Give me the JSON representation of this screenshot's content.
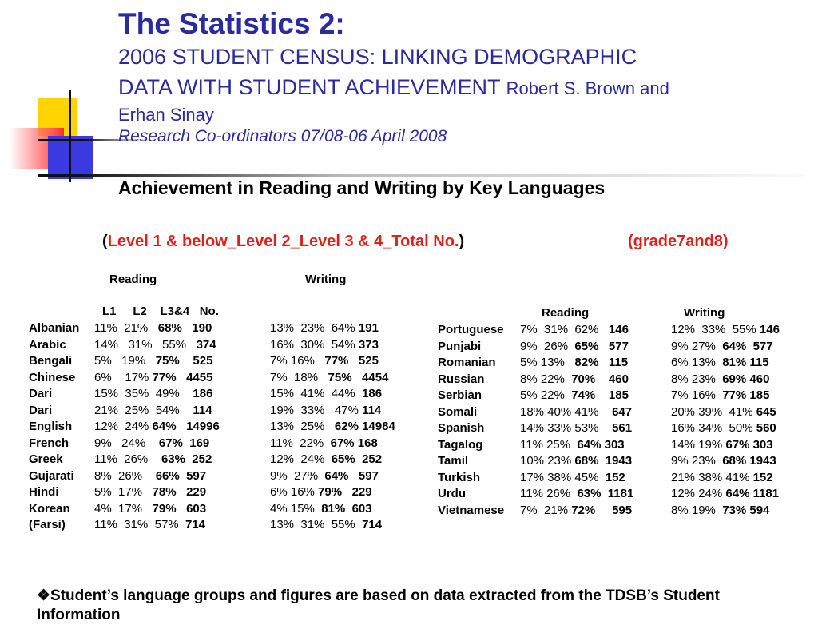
{
  "title": {
    "main": "The Statistics 2:",
    "line1": "2006 STUDENT CENSUS: LINKING DEMOGRAPHIC",
    "line2": "DATA WITH STUDENT ACHIEVEMENT",
    "authors_part1": "Robert S. Brown and",
    "authors_part2": "Erhan Sinay",
    "line4": "Research Co-ordinators 07/08-06 April 2008"
  },
  "heading": "Achievement in Reading and Writing by Key Languages",
  "legend": {
    "open": "(",
    "text": "Level 1 & below_Level 2_Level 3 & 4_Total No.",
    "close": ")",
    "grade": "(grade7and8)"
  },
  "left_table": {
    "reading_label": "Reading",
    "writing_label": "Writing",
    "columns": "L1     L2    L3&4   No.",
    "rows": [
      {
        "lang": "Albanian",
        "reading": "11%  21%   ",
        "r_bold": "68%   190",
        "writing": "13%  23%  64% ",
        "w_bold": "191"
      },
      {
        "lang": "Arabic",
        "reading": "14%   31%   55%   ",
        "r_bold": "374",
        "writing": "16%  30%  54% ",
        "w_bold": "373"
      },
      {
        "lang": "Bengali",
        "reading": "5%   19%   ",
        "r_bold": "75%    525",
        "writing": "7% 16%   ",
        "w_bold": "77%   525"
      },
      {
        "lang": "Chinese",
        "reading": "6%    17% ",
        "r_bold": "77%   4455",
        "writing": "7%  18%   ",
        "w_bold": "75%   4454"
      },
      {
        "lang": "Dari",
        "reading": "15%  35%  49%    ",
        "r_bold": "186",
        "writing": "15%  41%  44%  ",
        "w_bold": "186"
      },
      {
        "lang": "Dari",
        "reading": "21%  25%  54%    ",
        "r_bold": "114",
        "writing": "19%  33%   47% ",
        "w_bold": "114"
      },
      {
        "lang": "English",
        "reading": "12%  24% ",
        "r_bold": "64%   14996",
        "writing": "13%  25%   ",
        "w_bold": "62% 14984"
      },
      {
        "lang": "French",
        "reading": "9%   24%    ",
        "r_bold": "67%  169",
        "writing": "11%  22%  ",
        "w_bold": "67% 168"
      },
      {
        "lang": "Greek",
        "reading": "11%  26%    ",
        "r_bold": "63%  252",
        "writing": "12%  24%  ",
        "w_bold": "65%  252"
      },
      {
        "lang": "Gujarati",
        "reading": "8%  26%    ",
        "r_bold": "66%  597",
        "writing": "9%  27%  ",
        "w_bold": "64%   597"
      },
      {
        "lang": "Hindi",
        "reading": "5%  17%   ",
        "r_bold": "78%   229",
        "writing": "6% 16% ",
        "w_bold": "79%   229"
      },
      {
        "lang": "Korean",
        "reading": "4%  17%   ",
        "r_bold": "79%   603",
        "writing": "4% 15%  ",
        "w_bold": "81%  603"
      },
      {
        "lang": "(Farsi)",
        "reading": "11%  31%  57%  ",
        "r_bold": "714",
        "writing": "13%  31%  55%  ",
        "w_bold": "714"
      }
    ]
  },
  "right_table": {
    "reading_label": "Reading",
    "writing_label": "Writing",
    "rows": [
      {
        "lang": "Portuguese",
        "reading": "7%  31%  62%   ",
        "r_bold": "146",
        "writing": "12%  33%  55% ",
        "w_bold": "146"
      },
      {
        "lang": "Punjabi",
        "reading": "9%  26%  ",
        "r_bold": "65%   577",
        "writing": "9% 27%  ",
        "w_bold": "64%  577"
      },
      {
        "lang": "Romanian",
        "reading": "5% 13%   ",
        "r_bold": "82%   115",
        "writing": "6% 13%  ",
        "w_bold": "81% 115"
      },
      {
        "lang": "Russian",
        "reading": "8% 22%  ",
        "r_bold": "70%    460",
        "writing": "8% 23%  ",
        "w_bold": "69% 460"
      },
      {
        "lang": "Serbian",
        "reading": "5% 22%  ",
        "r_bold": "74%    185",
        "writing": "7% 16%  ",
        "w_bold": "77% 185"
      },
      {
        "lang": "Somali",
        "reading": "18% 40% 41%    ",
        "r_bold": "647",
        "writing": "20% 39%  41% ",
        "w_bold": "645"
      },
      {
        "lang": "Spanish",
        "reading": "14% 33% 53%    ",
        "r_bold": "561",
        "writing": "16% 34%  50% ",
        "w_bold": "560"
      },
      {
        "lang": "Tagalog",
        "reading": "11% 25%  ",
        "r_bold": "64% 303",
        "writing": "14% 19% ",
        "w_bold": "67% 303"
      },
      {
        "lang": "Tamil",
        "reading": "10% 23% ",
        "r_bold": "68%  1943",
        "writing": "9% 23%  ",
        "w_bold": "68% 1943"
      },
      {
        "lang": "Turkish",
        "reading": "17% 38% 45%  ",
        "r_bold": "152",
        "writing": "21% 38% 41% ",
        "w_bold": "152"
      },
      {
        "lang": "Urdu",
        "reading": "11% 26%  ",
        "r_bold": "63%  1181",
        "writing": "12% 24% ",
        "w_bold": "64% 1181"
      },
      {
        "lang": "Vietnamese",
        "reading": "7%  21% ",
        "r_bold": "72%     595",
        "writing": "8% 19%  ",
        "w_bold": "73% 594"
      }
    ]
  },
  "footnote": "❖Student’s language groups and figures are based on data extracted from the TDSB’s Student Information"
}
